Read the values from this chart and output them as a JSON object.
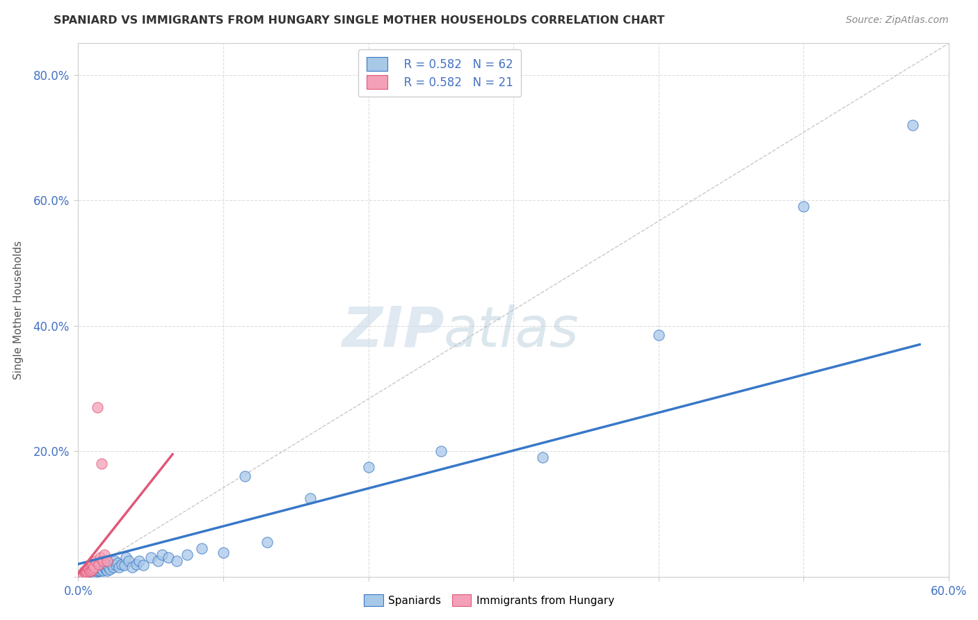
{
  "title": "SPANIARD VS IMMIGRANTS FROM HUNGARY SINGLE MOTHER HOUSEHOLDS CORRELATION CHART",
  "source": "Source: ZipAtlas.com",
  "ylabel": "Single Mother Households",
  "xlim": [
    0.0,
    0.6
  ],
  "ylim": [
    0.0,
    0.85
  ],
  "x_ticks": [
    0.0,
    0.1,
    0.2,
    0.3,
    0.4,
    0.5,
    0.6
  ],
  "y_ticks": [
    0.0,
    0.2,
    0.4,
    0.6,
    0.8
  ],
  "legend_r_blue": "R = 0.582",
  "legend_n_blue": "N = 62",
  "legend_r_pink": "R = 0.582",
  "legend_n_pink": "N = 21",
  "blue_color": "#a8c8e8",
  "pink_color": "#f4a0b8",
  "trendline_blue_color": "#3878c8",
  "trendline_pink_color": "#e05878",
  "diagonal_color": "#c8c8c8",
  "watermark_zip": "ZIP",
  "watermark_atlas": "atlas",
  "spaniards_x": [
    0.005,
    0.005,
    0.006,
    0.007,
    0.008,
    0.008,
    0.009,
    0.009,
    0.01,
    0.01,
    0.01,
    0.011,
    0.011,
    0.012,
    0.012,
    0.013,
    0.013,
    0.014,
    0.014,
    0.015,
    0.015,
    0.016,
    0.016,
    0.017,
    0.018,
    0.018,
    0.019,
    0.02,
    0.02,
    0.021,
    0.022,
    0.023,
    0.024,
    0.025,
    0.026,
    0.027,
    0.028,
    0.03,
    0.032,
    0.033,
    0.035,
    0.037,
    0.04,
    0.042,
    0.045,
    0.05,
    0.055,
    0.058,
    0.062,
    0.068,
    0.075,
    0.085,
    0.1,
    0.115,
    0.13,
    0.16,
    0.2,
    0.25,
    0.32,
    0.4,
    0.5,
    0.575
  ],
  "spaniards_y": [
    0.005,
    0.008,
    0.01,
    0.006,
    0.012,
    0.007,
    0.009,
    0.015,
    0.008,
    0.01,
    0.018,
    0.006,
    0.012,
    0.01,
    0.015,
    0.008,
    0.013,
    0.01,
    0.02,
    0.009,
    0.015,
    0.012,
    0.018,
    0.01,
    0.015,
    0.02,
    0.012,
    0.01,
    0.018,
    0.015,
    0.012,
    0.02,
    0.015,
    0.025,
    0.018,
    0.022,
    0.015,
    0.02,
    0.018,
    0.03,
    0.025,
    0.015,
    0.02,
    0.025,
    0.018,
    0.03,
    0.025,
    0.035,
    0.03,
    0.025,
    0.035,
    0.045,
    0.038,
    0.16,
    0.055,
    0.125,
    0.175,
    0.2,
    0.19,
    0.385,
    0.59,
    0.72
  ],
  "hungary_x": [
    0.003,
    0.004,
    0.005,
    0.005,
    0.006,
    0.007,
    0.007,
    0.008,
    0.009,
    0.009,
    0.01,
    0.01,
    0.011,
    0.012,
    0.013,
    0.014,
    0.015,
    0.016,
    0.017,
    0.018,
    0.02
  ],
  "hungary_y": [
    0.005,
    0.008,
    0.006,
    0.01,
    0.008,
    0.012,
    0.015,
    0.008,
    0.01,
    0.018,
    0.012,
    0.02,
    0.015,
    0.025,
    0.27,
    0.02,
    0.03,
    0.18,
    0.025,
    0.035,
    0.025
  ],
  "blue_trendline_x": [
    0.0,
    0.58
  ],
  "blue_trendline_y": [
    0.02,
    0.37
  ],
  "pink_trendline_x": [
    0.0,
    0.065
  ],
  "pink_trendline_y": [
    0.005,
    0.195
  ]
}
